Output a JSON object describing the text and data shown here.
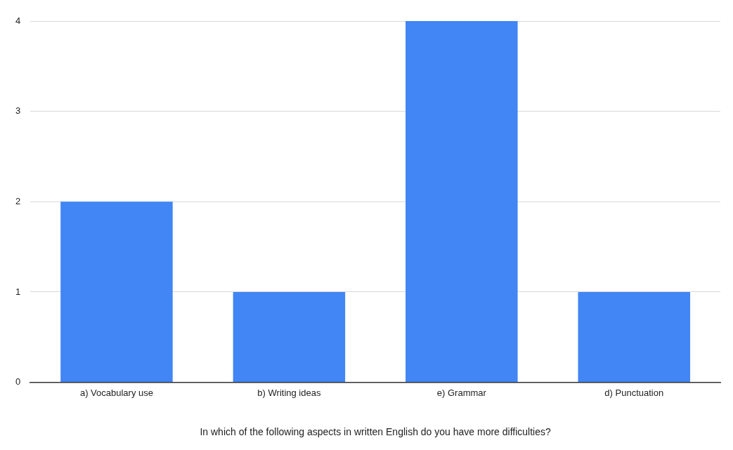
{
  "chart_data": {
    "type": "bar",
    "xlabel": "In which of the following aspects in written English do you have more difficulties?",
    "categories": [
      "a) Vocabulary use",
      "b) Writing ideas",
      "e) Grammar",
      "d) Punctuation"
    ],
    "values": [
      2,
      1,
      4,
      1
    ],
    "color": "#4285f4",
    "ylim": [
      0,
      4
    ],
    "yticks": [
      0,
      1,
      2,
      3,
      4
    ],
    "grid": "y"
  }
}
